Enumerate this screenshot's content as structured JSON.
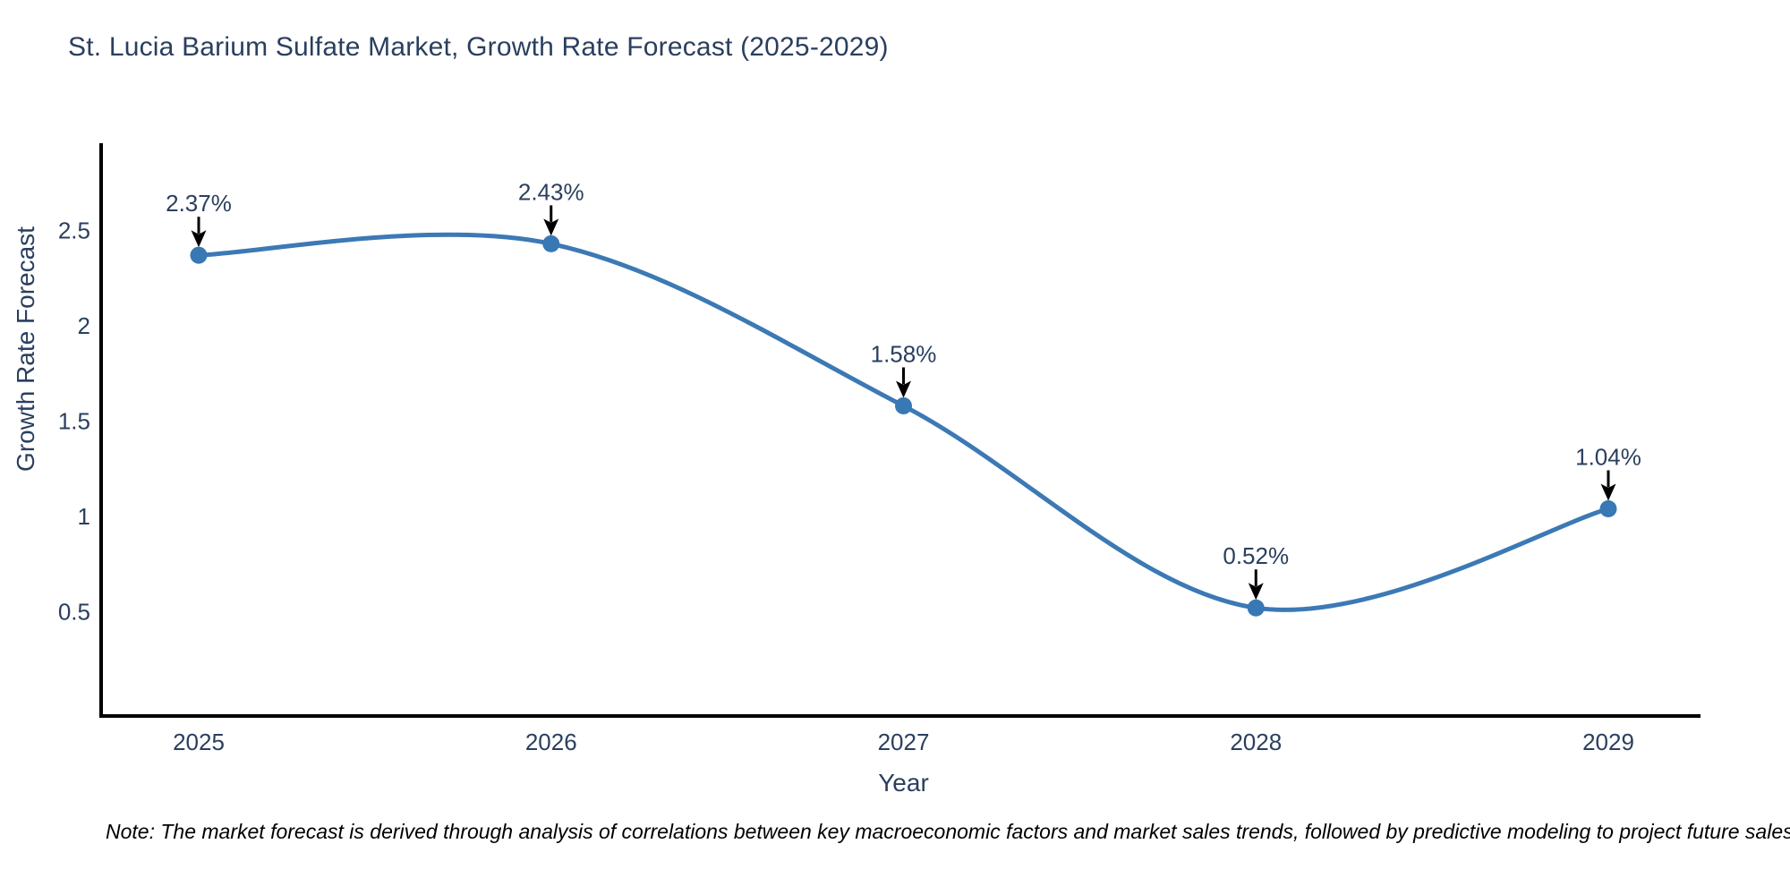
{
  "title": "St. Lucia Barium Sulfate Market, Growth Rate Forecast (2025-2029)",
  "note": "Note: The market forecast is derived through analysis of correlations between key macroeconomic factors and market sales trends, followed by predictive modeling to project future sales",
  "chart_data": {
    "type": "line",
    "title": "St. Lucia Barium Sulfate Market, Growth Rate Forecast (2025-2029)",
    "x": [
      2025,
      2026,
      2027,
      2028,
      2029
    ],
    "y": [
      2.37,
      2.43,
      1.58,
      0.52,
      1.04
    ],
    "point_labels": [
      "2.37%",
      "2.43%",
      "1.58%",
      "0.52%",
      "1.04%"
    ],
    "xlabel": "Year",
    "ylabel": "Growth Rate Forecast",
    "x_ticks": [
      2025,
      2026,
      2027,
      2028,
      2029
    ],
    "y_ticks": [
      0.5,
      1,
      1.5,
      2,
      2.5
    ],
    "ylim": [
      0,
      3
    ],
    "grid": false,
    "legend": "none",
    "line_shape": "spline",
    "line_color": "#3c79b5",
    "marker_color": "#3878b4",
    "axis_color": "#000000",
    "text_color": "#2a3f5f",
    "annotation_arrow_color": "#000000"
  }
}
